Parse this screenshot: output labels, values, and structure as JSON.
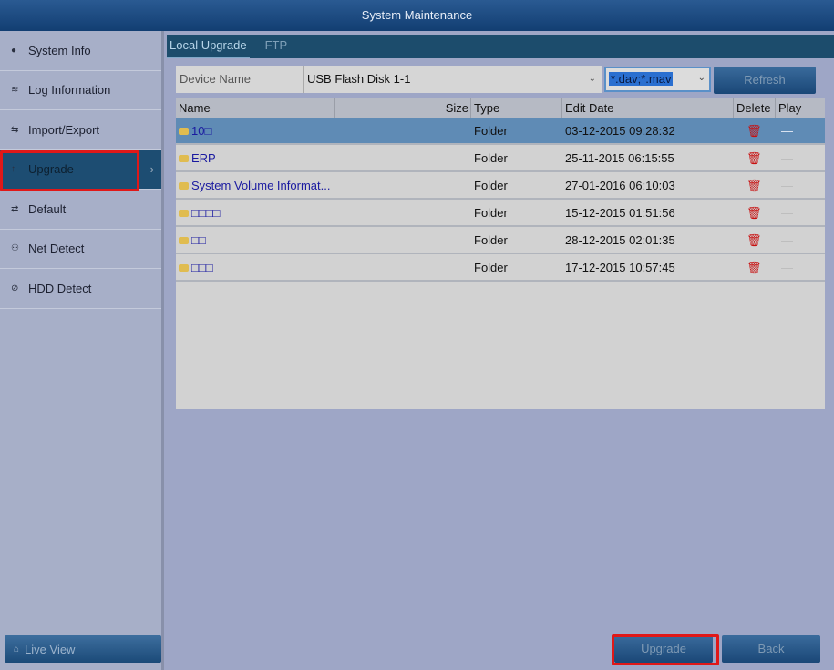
{
  "title": "System Maintenance",
  "sidebar": {
    "items": [
      {
        "label": "System Info",
        "icon": "info-icon",
        "glyph": "●"
      },
      {
        "label": "Log Information",
        "icon": "log-icon",
        "glyph": "≋"
      },
      {
        "label": "Import/Export",
        "icon": "import-export-icon",
        "glyph": "⇆"
      },
      {
        "label": "Upgrade",
        "icon": "upgrade-icon",
        "glyph": "↑",
        "active": true
      },
      {
        "label": "Default",
        "icon": "default-icon",
        "glyph": "⇄"
      },
      {
        "label": "Net Detect",
        "icon": "net-detect-icon",
        "glyph": "⚇"
      },
      {
        "label": "HDD Detect",
        "icon": "hdd-detect-icon",
        "glyph": "⊘"
      }
    ],
    "live_view": "Live View"
  },
  "tabs": [
    {
      "label": "Local Upgrade",
      "active": true
    },
    {
      "label": "FTP"
    }
  ],
  "device": {
    "label": "Device Name",
    "value": "USB Flash Disk 1-1"
  },
  "filter": {
    "value": "*.dav;*.mav"
  },
  "refresh_label": "Refresh",
  "table": {
    "headers": [
      "Name",
      "Size",
      "Type",
      "Edit Date",
      "Delete",
      "Play"
    ],
    "rows": [
      {
        "name": "10□",
        "size": "",
        "type": "Folder",
        "date": "03-12-2015 09:28:32",
        "selected": true
      },
      {
        "name": "ERP",
        "size": "",
        "type": "Folder",
        "date": "25-11-2015 06:15:55"
      },
      {
        "name": "System Volume Informat...",
        "size": "",
        "type": "Folder",
        "date": "27-01-2016 06:10:03"
      },
      {
        "name": "□□□□",
        "size": "",
        "type": "Folder",
        "date": "15-12-2015 01:51:56"
      },
      {
        "name": "□□",
        "size": "",
        "type": "Folder",
        "date": "28-12-2015 02:01:35"
      },
      {
        "name": "□□□",
        "size": "",
        "type": "Folder",
        "date": "17-12-2015 10:57:45"
      }
    ]
  },
  "buttons": {
    "upgrade": "Upgrade",
    "back": "Back"
  },
  "colors": {
    "highlight": "#e01818",
    "selected_row": "#5f8bb5",
    "delete": "#c81010"
  }
}
